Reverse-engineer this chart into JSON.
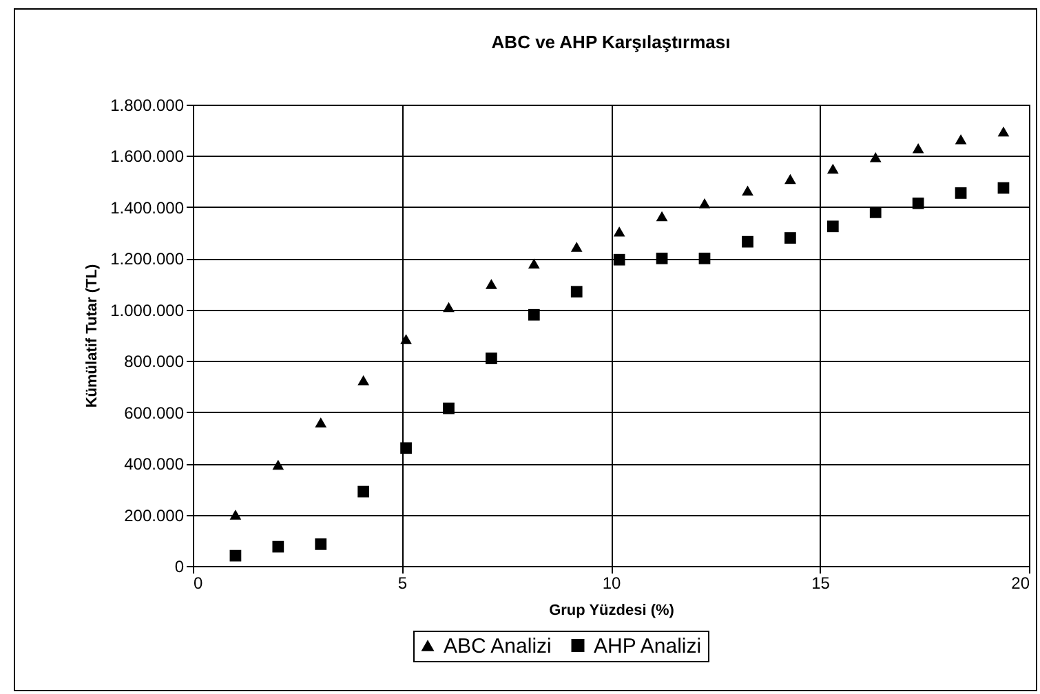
{
  "chart_data": {
    "type": "scatter",
    "title": "ABC ve AHP Karşılaştırması",
    "xlabel": "Grup Yüzdesi (%)",
    "ylabel": "Kümülatif Tutar (TL)",
    "x": [
      1.02,
      2.04,
      3.06,
      4.08,
      5.1,
      6.12,
      7.14,
      8.16,
      9.18,
      10.2,
      11.22,
      12.24,
      13.27,
      14.29,
      15.31,
      16.33,
      17.35,
      18.37,
      19.39
    ],
    "series": [
      {
        "name": "ABC Analizi",
        "color": "#000000",
        "marker": "triangle",
        "values": [
          200000,
          395000,
          560000,
          725000,
          885000,
          1010000,
          1100000,
          1180000,
          1245000,
          1305000,
          1365000,
          1415000,
          1465000,
          1510000,
          1550000,
          1595000,
          1630000,
          1665000,
          1695000
        ]
      },
      {
        "name": "AHP Analizi",
        "color": "#000000",
        "marker": "square",
        "values": [
          40000,
          75000,
          85000,
          290000,
          460000,
          615000,
          810000,
          980000,
          1070000,
          1195000,
          1200000,
          1200000,
          1265000,
          1280000,
          1325000,
          1380000,
          1415000,
          1455000,
          1475000
        ]
      }
    ],
    "xlim": [
      0,
      20
    ],
    "xticks": [
      0,
      5,
      10,
      15,
      20
    ],
    "ylim": [
      0,
      1800000
    ],
    "yticks": [
      {
        "value": 0,
        "label": "0"
      },
      {
        "value": 200000,
        "label": "200.000"
      },
      {
        "value": 400000,
        "label": "400.000"
      },
      {
        "value": 600000,
        "label": "600.000"
      },
      {
        "value": 800000,
        "label": "800.000"
      },
      {
        "value": 1000000,
        "label": "1.000.000"
      },
      {
        "value": 1200000,
        "label": "1.200.000"
      },
      {
        "value": 1400000,
        "label": "1.400.000"
      },
      {
        "value": 1600000,
        "label": "1.600.000"
      },
      {
        "value": 1800000,
        "label": "1.800.000"
      }
    ],
    "grid": true,
    "legend": "bottom"
  }
}
